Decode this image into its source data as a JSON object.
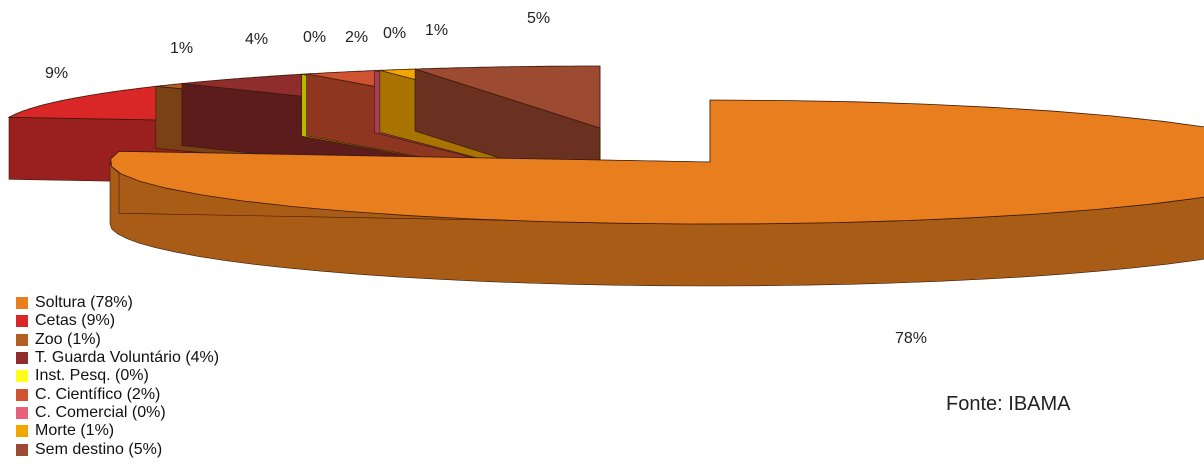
{
  "chart_data": {
    "type": "pie",
    "title": "",
    "slices": [
      {
        "label": "Soltura",
        "value": 78,
        "data_label": "78%",
        "legend": "Soltura (78%)",
        "color": "#e97e1e",
        "side": "#a95c16"
      },
      {
        "label": "Cetas",
        "value": 9,
        "data_label": "9%",
        "legend": "Cetas (9%)",
        "color": "#d92626",
        "side": "#99201f"
      },
      {
        "label": "Zoo",
        "value": 1,
        "data_label": "1%",
        "legend": "Zoo (1%)",
        "color": "#b35f22",
        "side": "#7a4016"
      },
      {
        "label": "T. Guarda Voluntário",
        "value": 4,
        "data_label": "4%",
        "legend": "T. Guarda Voluntário (4%)",
        "color": "#8f2c2c",
        "side": "#5c1c1c"
      },
      {
        "label": "Inst. Pesq.",
        "value": 0,
        "data_label": "0%",
        "legend": "Inst. Pesq. (0%)",
        "color": "#ffff1a",
        "side": "#b8b800"
      },
      {
        "label": "C. Científico",
        "value": 2,
        "data_label": "2%",
        "legend": "C. Científico (2%)",
        "color": "#cf5232",
        "side": "#8e3620"
      },
      {
        "label": "C. Comercial",
        "value": 0,
        "data_label": "0%",
        "legend": "C. Comercial (0%)",
        "color": "#e8607a",
        "side": "#a83f52"
      },
      {
        "label": "Morte",
        "value": 1,
        "data_label": "1%",
        "legend": "Morte (1%)",
        "color": "#f2a600",
        "side": "#a87300"
      },
      {
        "label": "Sem destino",
        "value": 5,
        "data_label": "5%",
        "legend": "Sem destino (5%)",
        "color": "#9c4a32",
        "side": "#6a3020"
      }
    ],
    "legend_position": "bottom-left"
  },
  "source_text": "Fonte: IBAMA"
}
